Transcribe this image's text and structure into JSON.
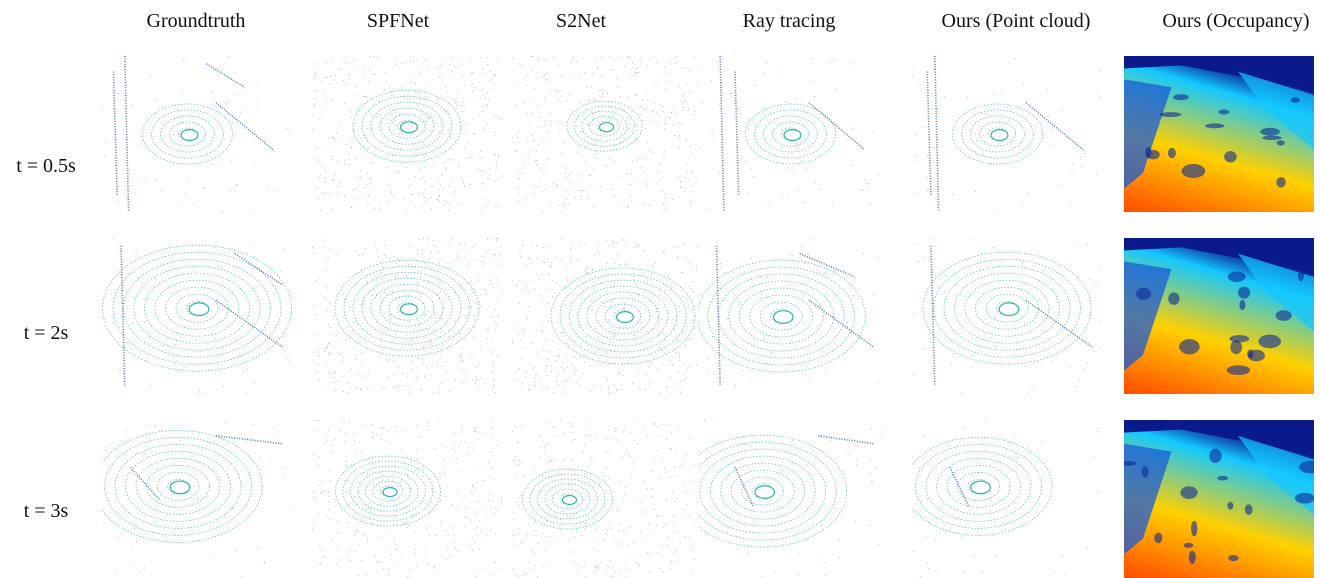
{
  "columns": [
    "Groundtruth",
    "SPFNet",
    "S2Net",
    "Ray tracing",
    "Ours (Point cloud)",
    "Ours (Occupancy)"
  ],
  "rows": [
    {
      "label": "t = 0.5s"
    },
    {
      "label": "t = 2s"
    },
    {
      "label": "t = 3s"
    }
  ],
  "colors": {
    "ring": "#2fb3a8",
    "structure": "#2a55b8",
    "scatter": "#6f8fc9",
    "occ_near": "#ff4a00",
    "occ_mid": "#ffd000",
    "occ_far": "#14c8ff",
    "occ_top": "#0a1a8a"
  }
}
